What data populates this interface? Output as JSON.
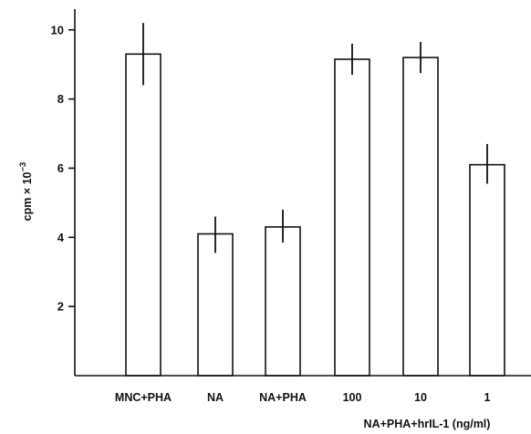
{
  "chart_data": {
    "type": "bar",
    "categories": [
      "MNC+PHA",
      "NA",
      "NA+PHA",
      "100",
      "10",
      "1"
    ],
    "values": [
      9.3,
      4.1,
      4.3,
      9.15,
      9.2,
      6.1
    ],
    "error_high": [
      10.2,
      4.6,
      4.8,
      9.6,
      9.65,
      6.7
    ],
    "error_low": [
      8.4,
      3.55,
      3.85,
      8.7,
      8.75,
      5.55
    ],
    "ylabel_base": "cpm × 10",
    "ylabel_exp": "−3",
    "xlabel": "NA+PHA+hrIL-1 (ng/ml)",
    "yticks": [
      "2",
      "4",
      "6",
      "8",
      "10"
    ],
    "ylim": [
      0,
      10.6
    ],
    "grid": false,
    "bar_color": "#ffffff",
    "line_color": "#111111"
  }
}
